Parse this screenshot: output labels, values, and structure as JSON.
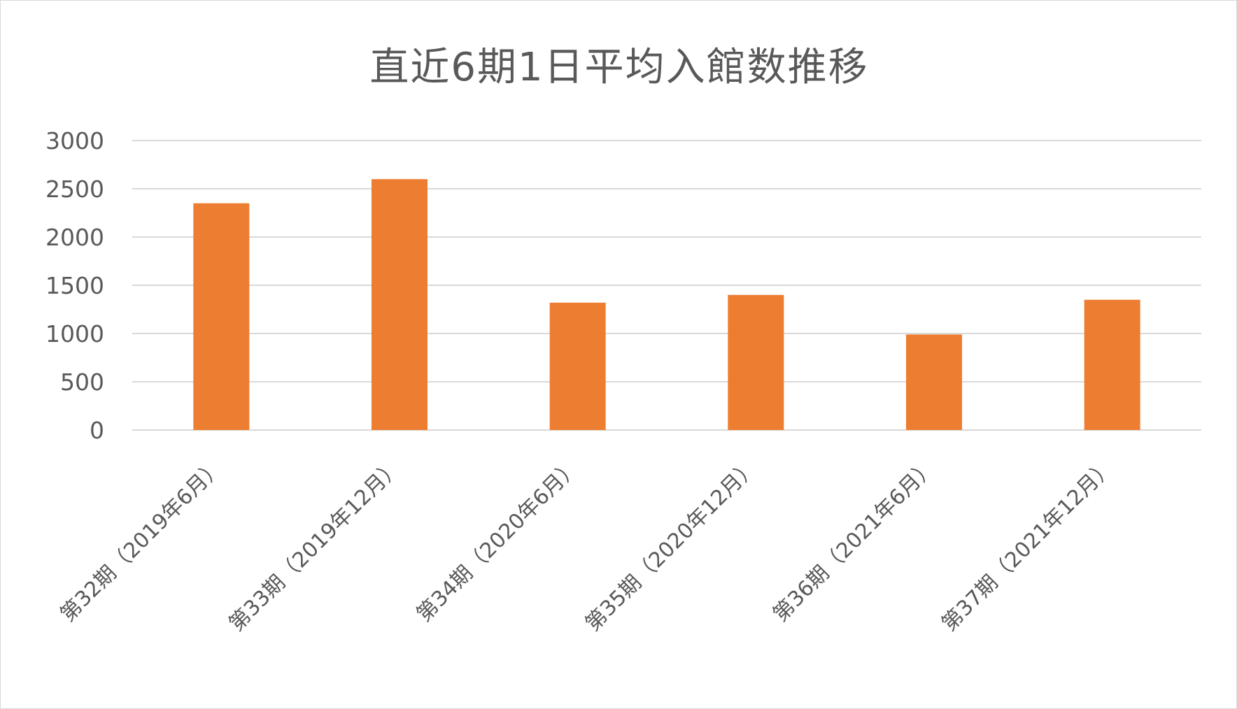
{
  "chart_data": {
    "type": "bar",
    "title": "直近6期1日平均入館数推移",
    "xlabel": "",
    "ylabel": "",
    "categories": [
      "第32期（2019年6月）",
      "第33期（2019年12月）",
      "第34期（2020年6月）",
      "第35期（2020年12月）",
      "第36期（2021年6月）",
      "第37期（2021年12月）"
    ],
    "series": [
      {
        "values": [
          2350,
          2600,
          1320,
          1400,
          990,
          1350
        ],
        "color": "#ed7d31"
      }
    ],
    "ylim": [
      0,
      3000
    ],
    "yticks": [
      0,
      500,
      1000,
      1500,
      2000,
      2500,
      3000
    ],
    "grid": true,
    "legend": "none",
    "colors": {
      "bar": "#ed7d31",
      "grid": "#d9d9d9",
      "axis_text": "#595959",
      "title": "#595959"
    }
  }
}
